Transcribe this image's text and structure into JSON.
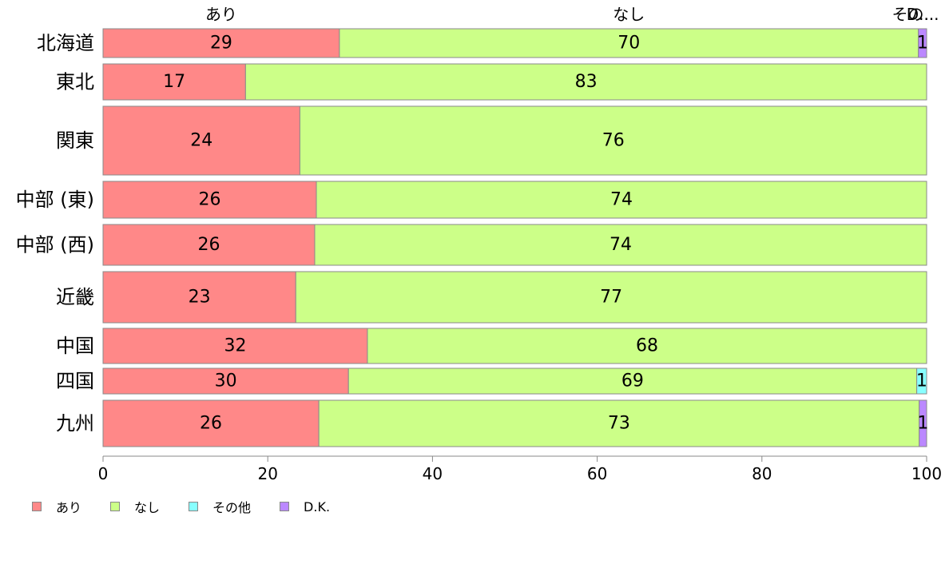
{
  "chart_data": {
    "type": "bar",
    "orientation": "horizontal",
    "stacked": true,
    "categories": [
      "北海道",
      "東北",
      "関東",
      "中部 (東)",
      "中部 (西)",
      "近畿",
      "中国",
      "四国",
      "九州"
    ],
    "series": [
      {
        "name": "あり",
        "color": "#ff8888",
        "values": [
          28.7,
          17.3,
          23.9,
          25.9,
          25.7,
          23.4,
          32.1,
          29.8,
          26.2
        ]
      },
      {
        "name": "なし",
        "color": "#ccff88",
        "values": [
          70.3,
          82.7,
          76.1,
          74.1,
          74.3,
          76.6,
          67.9,
          69.0,
          72.9
        ]
      },
      {
        "name": "その他",
        "color": "#88ffff",
        "values": [
          0,
          0,
          0,
          0,
          0,
          0,
          0,
          1.2,
          0
        ]
      },
      {
        "name": "D.K.",
        "color": "#bb88ff",
        "values": [
          1.0,
          0,
          0,
          0,
          0,
          0,
          0,
          0,
          0.9
        ]
      }
    ],
    "data_labels": [
      [
        "29",
        "70",
        "",
        "1"
      ],
      [
        "17",
        "83",
        "",
        ""
      ],
      [
        "24",
        "76",
        "",
        ""
      ],
      [
        "26",
        "74",
        "",
        ""
      ],
      [
        "26",
        "74",
        "",
        ""
      ],
      [
        "23",
        "77",
        "",
        ""
      ],
      [
        "32",
        "68",
        "",
        ""
      ],
      [
        "30",
        "69",
        "1",
        ""
      ],
      [
        "26",
        "73",
        "",
        "1"
      ]
    ],
    "top_labels": [
      "あり",
      "なし",
      "その...",
      "D..."
    ],
    "xlim": [
      0,
      100
    ],
    "xticks": [
      "0",
      "20",
      "40",
      "60",
      "80",
      "100"
    ],
    "grid": false,
    "legend_position": "bottom-left"
  },
  "legend": [
    {
      "label": "あり",
      "color": "#ff8888"
    },
    {
      "label": "なし",
      "color": "#ccff88"
    },
    {
      "label": "その他",
      "color": "#88ffff"
    },
    {
      "label": "D.K.",
      "color": "#bb88ff"
    }
  ]
}
